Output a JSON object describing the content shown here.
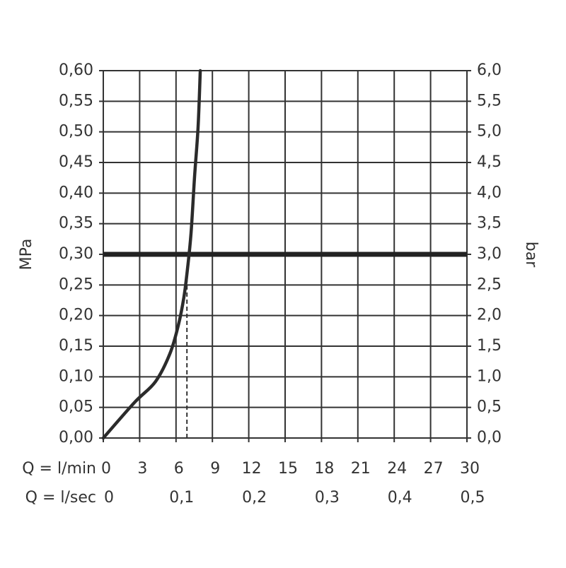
{
  "chart_data": {
    "type": "line",
    "x_axis_label": "Q = l/min",
    "x2_axis_label": "Q = l/sec",
    "y_axis_label": "MPa",
    "y2_axis_label": "bar",
    "x": [
      0,
      2.57,
      4.3,
      5.5,
      6.2,
      6.65,
      6.95,
      7.24,
      7.53,
      7.82,
      8.0
    ],
    "values": [
      0,
      0.058,
      0.092,
      0.138,
      0.185,
      0.23,
      0.277,
      0.335,
      0.427,
      0.508,
      0.6
    ],
    "color": "#2b2b2b",
    "xlim": [
      0,
      30
    ],
    "xticks": [
      0,
      3,
      6,
      9,
      12,
      15,
      18,
      21,
      24,
      27,
      30
    ],
    "x2lim": [
      0,
      0.5
    ],
    "x2ticks": [
      0,
      {
        "value": 0.1,
        "label": "0,1"
      },
      {
        "value": 0.2,
        "label": "0,2"
      },
      {
        "value": 0.3,
        "label": "0,3"
      },
      {
        "value": 0.4,
        "label": "0,4"
      },
      {
        "value": 0.5,
        "label": "0,5"
      }
    ],
    "ylim": [
      0,
      0.6
    ],
    "yticks": [
      {
        "value": 0,
        "label": "0,00"
      },
      {
        "value": 0.05,
        "label": "0,05"
      },
      {
        "value": 0.1,
        "label": "0,10"
      },
      {
        "value": 0.15,
        "label": "0,15"
      },
      {
        "value": 0.2,
        "label": "0,20"
      },
      {
        "value": 0.25,
        "label": "0,25"
      },
      {
        "value": 0.3,
        "label": "0,30"
      },
      {
        "value": 0.35,
        "label": "0,35"
      },
      {
        "value": 0.4,
        "label": "0,40"
      },
      {
        "value": 0.45,
        "label": "0,45"
      },
      {
        "value": 0.5,
        "label": "0,50"
      },
      {
        "value": 0.55,
        "label": "0,55"
      },
      {
        "value": 0.6,
        "label": "0,60"
      }
    ],
    "y2lim": [
      0,
      6
    ],
    "y2ticks": [
      {
        "value": 0,
        "label": "0,0"
      },
      {
        "value": 0.5,
        "label": "0,5"
      },
      {
        "value": 1,
        "label": "1,0"
      },
      {
        "value": 1.5,
        "label": "1,5"
      },
      {
        "value": 2,
        "label": "2,0"
      },
      {
        "value": 2.5,
        "label": "2,5"
      },
      {
        "value": 3,
        "label": "3,0"
      },
      {
        "value": 3.5,
        "label": "3,5"
      },
      {
        "value": 4,
        "label": "4,0"
      },
      {
        "value": 4.5,
        "label": "4,5"
      },
      {
        "value": 5,
        "label": "5,0"
      },
      {
        "value": 5.5,
        "label": "5,5"
      },
      {
        "value": 6,
        "label": "6,0"
      }
    ],
    "reference_y": 0.3,
    "marker": {
      "x": 6.9,
      "y": 0.28
    },
    "grid": true
  }
}
